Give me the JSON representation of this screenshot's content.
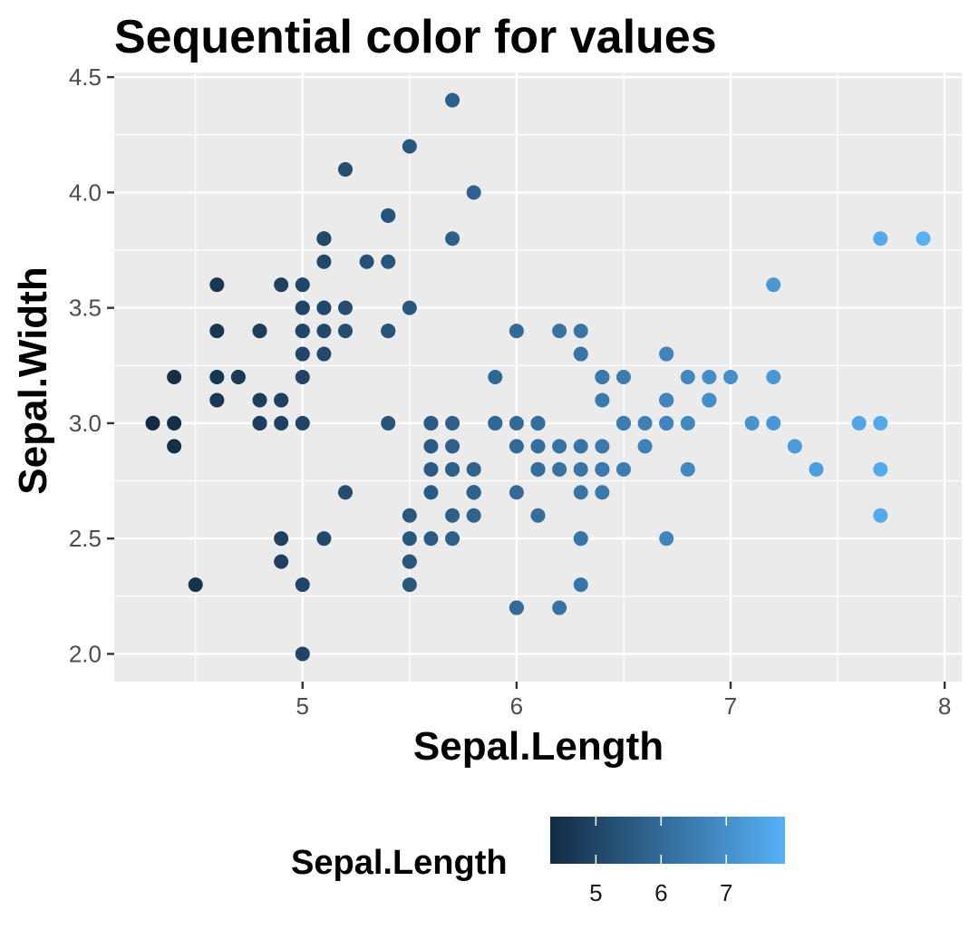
{
  "chart_data": {
    "type": "scatter",
    "title": "Sequential color for values",
    "xlabel": "Sepal.Length",
    "ylabel": "Sepal.Width",
    "xlim": [
      4.12,
      8.08
    ],
    "ylim": [
      1.88,
      4.52
    ],
    "x_ticks": [
      5,
      6,
      7,
      8
    ],
    "y_ticks": [
      2.0,
      2.5,
      3.0,
      3.5,
      4.0,
      4.5
    ],
    "x_tick_labels": [
      "5",
      "6",
      "7",
      "8"
    ],
    "y_tick_labels": [
      "2.0",
      "2.5",
      "3.0",
      "3.5",
      "4.0",
      "4.5"
    ],
    "grid": true,
    "panel_background": "#ebebeb",
    "grid_color": "#ffffff",
    "legend": {
      "title": "Sepal.Length",
      "position": "bottom",
      "type": "colorbar",
      "range": [
        4.3,
        7.9
      ],
      "breaks": [
        5,
        6,
        7
      ],
      "break_labels": [
        "5",
        "6",
        "7"
      ],
      "low_color": "#132B43",
      "high_color": "#56B1F7"
    },
    "color_variable": "Sepal.Length",
    "points": [
      [
        5.1,
        3.5
      ],
      [
        4.9,
        3.0
      ],
      [
        4.7,
        3.2
      ],
      [
        4.6,
        3.1
      ],
      [
        5.0,
        3.6
      ],
      [
        5.4,
        3.9
      ],
      [
        4.6,
        3.4
      ],
      [
        5.0,
        3.4
      ],
      [
        4.4,
        2.9
      ],
      [
        4.9,
        3.1
      ],
      [
        5.4,
        3.7
      ],
      [
        4.8,
        3.4
      ],
      [
        4.8,
        3.0
      ],
      [
        4.3,
        3.0
      ],
      [
        5.8,
        4.0
      ],
      [
        5.7,
        4.4
      ],
      [
        5.4,
        3.9
      ],
      [
        5.1,
        3.5
      ],
      [
        5.7,
        3.8
      ],
      [
        5.1,
        3.8
      ],
      [
        5.4,
        3.4
      ],
      [
        5.1,
        3.7
      ],
      [
        4.6,
        3.6
      ],
      [
        5.1,
        3.3
      ],
      [
        4.8,
        3.4
      ],
      [
        5.0,
        3.0
      ],
      [
        5.0,
        3.4
      ],
      [
        5.2,
        3.5
      ],
      [
        5.2,
        3.4
      ],
      [
        4.7,
        3.2
      ],
      [
        4.8,
        3.1
      ],
      [
        5.4,
        3.4
      ],
      [
        5.2,
        4.1
      ],
      [
        5.5,
        4.2
      ],
      [
        4.9,
        3.1
      ],
      [
        5.0,
        3.2
      ],
      [
        5.5,
        3.5
      ],
      [
        4.9,
        3.6
      ],
      [
        4.4,
        3.0
      ],
      [
        5.1,
        3.4
      ],
      [
        5.0,
        3.5
      ],
      [
        4.5,
        2.3
      ],
      [
        4.4,
        3.2
      ],
      [
        5.0,
        3.5
      ],
      [
        5.1,
        3.8
      ],
      [
        4.8,
        3.0
      ],
      [
        5.1,
        3.8
      ],
      [
        4.6,
        3.2
      ],
      [
        5.3,
        3.7
      ],
      [
        5.0,
        3.3
      ],
      [
        7.0,
        3.2
      ],
      [
        6.4,
        3.2
      ],
      [
        6.9,
        3.1
      ],
      [
        5.5,
        2.3
      ],
      [
        6.5,
        2.8
      ],
      [
        5.7,
        2.8
      ],
      [
        6.3,
        3.3
      ],
      [
        4.9,
        2.4
      ],
      [
        6.6,
        2.9
      ],
      [
        5.2,
        2.7
      ],
      [
        5.0,
        2.0
      ],
      [
        5.9,
        3.0
      ],
      [
        6.0,
        2.2
      ],
      [
        6.1,
        2.9
      ],
      [
        5.6,
        2.9
      ],
      [
        6.7,
        3.1
      ],
      [
        5.6,
        3.0
      ],
      [
        5.8,
        2.7
      ],
      [
        6.2,
        2.2
      ],
      [
        5.6,
        2.5
      ],
      [
        5.9,
        3.2
      ],
      [
        6.1,
        2.8
      ],
      [
        6.3,
        2.5
      ],
      [
        6.1,
        2.8
      ],
      [
        6.4,
        2.9
      ],
      [
        6.6,
        3.0
      ],
      [
        6.8,
        2.8
      ],
      [
        6.7,
        3.0
      ],
      [
        6.0,
        2.9
      ],
      [
        5.7,
        2.6
      ],
      [
        5.5,
        2.4
      ],
      [
        5.5,
        2.4
      ],
      [
        5.8,
        2.7
      ],
      [
        6.0,
        2.7
      ],
      [
        5.4,
        3.0
      ],
      [
        6.0,
        3.4
      ],
      [
        6.7,
        3.1
      ],
      [
        6.3,
        2.3
      ],
      [
        5.6,
        3.0
      ],
      [
        5.5,
        2.5
      ],
      [
        5.5,
        2.6
      ],
      [
        6.1,
        3.0
      ],
      [
        5.8,
        2.6
      ],
      [
        5.0,
        2.3
      ],
      [
        5.6,
        2.7
      ],
      [
        5.7,
        3.0
      ],
      [
        5.7,
        2.9
      ],
      [
        6.2,
        2.9
      ],
      [
        5.1,
        2.5
      ],
      [
        5.7,
        2.8
      ],
      [
        6.3,
        3.3
      ],
      [
        5.8,
        2.7
      ],
      [
        7.1,
        3.0
      ],
      [
        6.3,
        2.9
      ],
      [
        6.5,
        3.0
      ],
      [
        7.6,
        3.0
      ],
      [
        4.9,
        2.5
      ],
      [
        7.3,
        2.9
      ],
      [
        6.7,
        2.5
      ],
      [
        7.2,
        3.6
      ],
      [
        6.5,
        3.2
      ],
      [
        6.4,
        2.7
      ],
      [
        6.8,
        3.0
      ],
      [
        5.7,
        2.5
      ],
      [
        5.8,
        2.8
      ],
      [
        6.4,
        3.2
      ],
      [
        6.5,
        3.0
      ],
      [
        7.7,
        3.8
      ],
      [
        7.7,
        2.6
      ],
      [
        6.0,
        2.2
      ],
      [
        6.9,
        3.2
      ],
      [
        5.6,
        2.8
      ],
      [
        7.7,
        2.8
      ],
      [
        6.3,
        2.7
      ],
      [
        6.7,
        3.3
      ],
      [
        7.2,
        3.2
      ],
      [
        6.2,
        2.8
      ],
      [
        6.1,
        3.0
      ],
      [
        6.4,
        2.8
      ],
      [
        7.2,
        3.0
      ],
      [
        7.4,
        2.8
      ],
      [
        7.9,
        3.8
      ],
      [
        6.4,
        2.8
      ],
      [
        6.3,
        2.8
      ],
      [
        6.1,
        2.6
      ],
      [
        7.7,
        3.0
      ],
      [
        6.3,
        3.4
      ],
      [
        6.4,
        3.1
      ],
      [
        6.0,
        3.0
      ],
      [
        6.9,
        3.1
      ],
      [
        6.7,
        3.1
      ],
      [
        6.9,
        3.1
      ],
      [
        5.8,
        2.7
      ],
      [
        6.8,
        3.2
      ],
      [
        6.7,
        3.3
      ],
      [
        6.7,
        3.0
      ],
      [
        6.3,
        2.5
      ],
      [
        6.5,
        3.0
      ],
      [
        6.2,
        3.4
      ],
      [
        5.9,
        3.0
      ]
    ]
  }
}
